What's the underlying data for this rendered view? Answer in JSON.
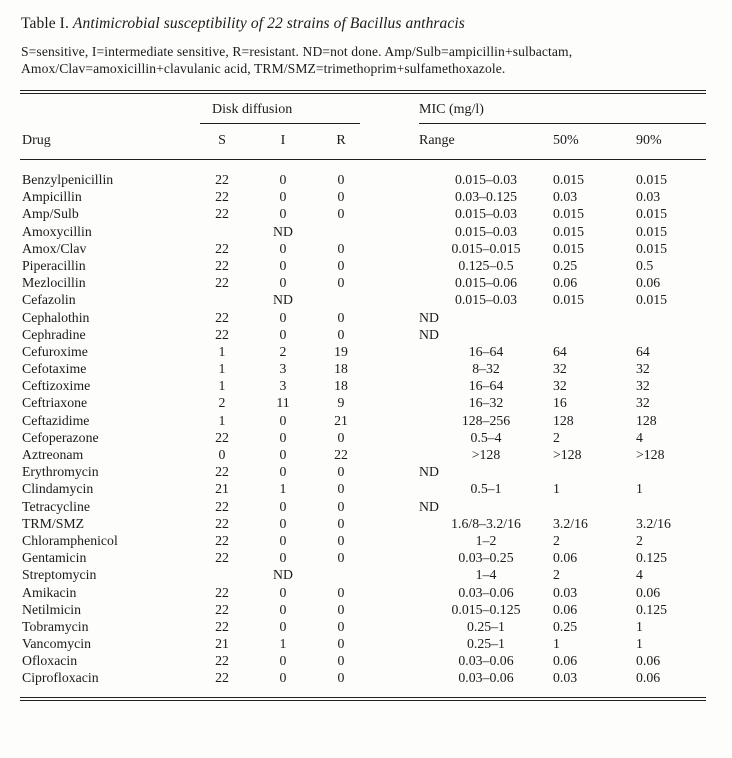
{
  "title": {
    "label": "Table I.",
    "text": "Antimicrobial susceptibility of 22 strains of Bacillus anthracis"
  },
  "note": {
    "line1": "S=sensitive, I=intermediate sensitive, R=resistant. ND=not done. Amp/Sulb=ampicillin+sulbactam,",
    "line2": "Amox/Clav=amoxicillin+clavulanic acid, TRM/SMZ=trimethoprim+sulfamethoxazole."
  },
  "table": {
    "group_headers": {
      "disk_diffusion": "Disk diffusion",
      "mic": "MIC (mg/l)"
    },
    "columns": [
      "Drug",
      "S",
      "I",
      "R",
      "Range",
      "50%",
      "90%"
    ],
    "rows": [
      {
        "drug": "Benzylpenicillin",
        "s": "22",
        "i": "0",
        "r": "0",
        "range": "0.015–0.03",
        "p50": "0.015",
        "p90": "0.015"
      },
      {
        "drug": "Ampicillin",
        "s": "22",
        "i": "0",
        "r": "0",
        "range": "0.03–0.125",
        "p50": "0.03",
        "p90": "0.03"
      },
      {
        "drug": "Amp/Sulb",
        "s": "22",
        "i": "0",
        "r": "0",
        "range": "0.015–0.03",
        "p50": "0.015",
        "p90": "0.015"
      },
      {
        "drug": "Amoxycillin",
        "s": "",
        "i": "ND",
        "r": "",
        "range": "0.015–0.03",
        "p50": "0.015",
        "p90": "0.015"
      },
      {
        "drug": "Amox/Clav",
        "s": "22",
        "i": "0",
        "r": "0",
        "range": "0.015–0.015",
        "p50": "0.015",
        "p90": "0.015"
      },
      {
        "drug": "Piperacillin",
        "s": "22",
        "i": "0",
        "r": "0",
        "range": "0.125–0.5",
        "p50": "0.25",
        "p90": "0.5"
      },
      {
        "drug": "Mezlocillin",
        "s": "22",
        "i": "0",
        "r": "0",
        "range": "0.015–0.06",
        "p50": "0.06",
        "p90": "0.06"
      },
      {
        "drug": "Cefazolin",
        "s": "",
        "i": "ND",
        "r": "",
        "range": "0.015–0.03",
        "p50": "0.015",
        "p90": "0.015"
      },
      {
        "drug": "Cephalothin",
        "s": "22",
        "i": "0",
        "r": "0",
        "range": "ND",
        "p50": "",
        "p90": ""
      },
      {
        "drug": "Cephradine",
        "s": "22",
        "i": "0",
        "r": "0",
        "range": "ND",
        "p50": "",
        "p90": ""
      },
      {
        "drug": "Cefuroxime",
        "s": "1",
        "i": "2",
        "r": "19",
        "range": "16–64",
        "p50": "64",
        "p90": "64"
      },
      {
        "drug": "Cefotaxime",
        "s": "1",
        "i": "3",
        "r": "18",
        "range": "8–32",
        "p50": "32",
        "p90": "32"
      },
      {
        "drug": "Ceftizoxime",
        "s": "1",
        "i": "3",
        "r": "18",
        "range": "16–64",
        "p50": "32",
        "p90": "32"
      },
      {
        "drug": "Ceftriaxone",
        "s": "2",
        "i": "11",
        "r": "9",
        "range": "16–32",
        "p50": "16",
        "p90": "32"
      },
      {
        "drug": "Ceftazidime",
        "s": "1",
        "i": "0",
        "r": "21",
        "range": "128–256",
        "p50": "128",
        "p90": "128"
      },
      {
        "drug": "Cefoperazone",
        "s": "22",
        "i": "0",
        "r": "0",
        "range": "0.5–4",
        "p50": "2",
        "p90": "4"
      },
      {
        "drug": "Aztreonam",
        "s": "0",
        "i": "0",
        "r": "22",
        "range": ">128",
        "p50": ">128",
        "p90": ">128"
      },
      {
        "drug": "Erythromycin",
        "s": "22",
        "i": "0",
        "r": "0",
        "range": "ND",
        "p50": "",
        "p90": ""
      },
      {
        "drug": "Clindamycin",
        "s": "21",
        "i": "1",
        "r": "0",
        "range": "0.5–1",
        "p50": "1",
        "p90": "1"
      },
      {
        "drug": "Tetracycline",
        "s": "22",
        "i": "0",
        "r": "0",
        "range": "ND",
        "p50": "",
        "p90": ""
      },
      {
        "drug": "TRM/SMZ",
        "s": "22",
        "i": "0",
        "r": "0",
        "range": "1.6/8–3.2/16",
        "p50": "3.2/16",
        "p90": "3.2/16"
      },
      {
        "drug": "Chloramphenicol",
        "s": "22",
        "i": "0",
        "r": "0",
        "range": "1–2",
        "p50": "2",
        "p90": "2"
      },
      {
        "drug": "Gentamicin",
        "s": "22",
        "i": "0",
        "r": "0",
        "range": "0.03–0.25",
        "p50": "0.06",
        "p90": "0.125"
      },
      {
        "drug": "Streptomycin",
        "s": "",
        "i": "ND",
        "r": "",
        "range": "1–4",
        "p50": "2",
        "p90": "4"
      },
      {
        "drug": "Amikacin",
        "s": "22",
        "i": "0",
        "r": "0",
        "range": "0.03–0.06",
        "p50": "0.03",
        "p90": "0.06"
      },
      {
        "drug": "Netilmicin",
        "s": "22",
        "i": "0",
        "r": "0",
        "range": "0.015–0.125",
        "p50": "0.06",
        "p90": "0.125"
      },
      {
        "drug": "Tobramycin",
        "s": "22",
        "i": "0",
        "r": "0",
        "range": "0.25–1",
        "p50": "0.25",
        "p90": "1"
      },
      {
        "drug": "Vancomycin",
        "s": "21",
        "i": "1",
        "r": "0",
        "range": "0.25–1",
        "p50": "1",
        "p90": "1"
      },
      {
        "drug": "Ofloxacin",
        "s": "22",
        "i": "0",
        "r": "0",
        "range": "0.03–0.06",
        "p50": "0.06",
        "p90": "0.06"
      },
      {
        "drug": "Ciprofloxacin",
        "s": "22",
        "i": "0",
        "r": "0",
        "range": "0.03–0.06",
        "p50": "0.03",
        "p90": "0.06"
      }
    ]
  }
}
